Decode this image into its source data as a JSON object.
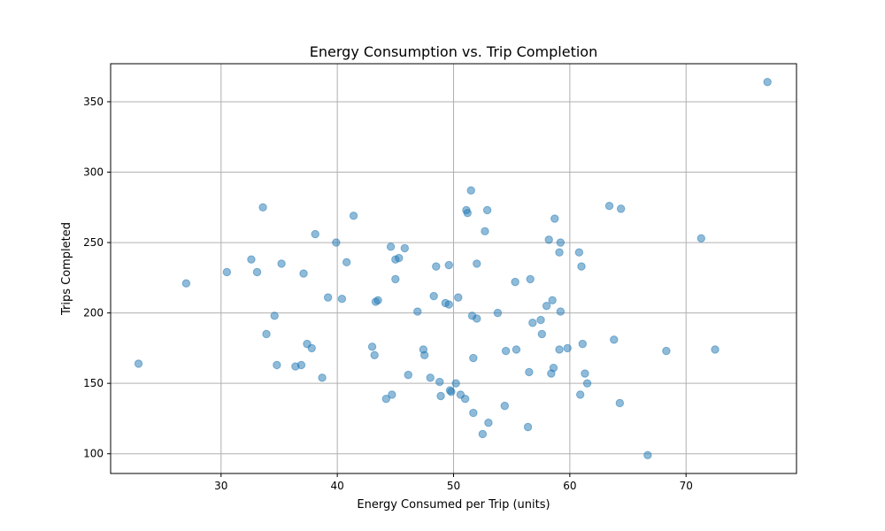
{
  "chart_data": {
    "type": "scatter",
    "title": "Energy Consumption vs. Trip Completion",
    "xlabel": "Energy Consumed per Trip (units)",
    "ylabel": "Trips Completed",
    "xlim": [
      20.5,
      79.5
    ],
    "ylim": [
      86,
      377
    ],
    "xticks": [
      30,
      40,
      50,
      60,
      70
    ],
    "yticks": [
      100,
      150,
      200,
      250,
      300,
      350
    ],
    "grid": true,
    "point_color": "#1f77b4",
    "point_opacity": 0.5,
    "points": [
      [
        22.9,
        164
      ],
      [
        27.0,
        221
      ],
      [
        30.5,
        229
      ],
      [
        32.6,
        238
      ],
      [
        33.1,
        229
      ],
      [
        33.6,
        275
      ],
      [
        33.9,
        185
      ],
      [
        34.6,
        198
      ],
      [
        34.8,
        163
      ],
      [
        35.2,
        235
      ],
      [
        36.4,
        162
      ],
      [
        36.9,
        163
      ],
      [
        37.1,
        228
      ],
      [
        37.4,
        178
      ],
      [
        37.8,
        175
      ],
      [
        38.1,
        256
      ],
      [
        38.7,
        154
      ],
      [
        39.2,
        211
      ],
      [
        39.9,
        250
      ],
      [
        40.4,
        210
      ],
      [
        40.8,
        236
      ],
      [
        41.4,
        269
      ],
      [
        43.0,
        176
      ],
      [
        43.2,
        170
      ],
      [
        43.3,
        208
      ],
      [
        43.5,
        209
      ],
      [
        44.2,
        139
      ],
      [
        44.6,
        247
      ],
      [
        44.7,
        142
      ],
      [
        45.0,
        224
      ],
      [
        45.0,
        238
      ],
      [
        45.3,
        239
      ],
      [
        45.8,
        246
      ],
      [
        46.1,
        156
      ],
      [
        46.9,
        201
      ],
      [
        47.4,
        174
      ],
      [
        47.5,
        170
      ],
      [
        48.0,
        154
      ],
      [
        48.3,
        212
      ],
      [
        48.5,
        233
      ],
      [
        48.8,
        151
      ],
      [
        48.9,
        141
      ],
      [
        49.3,
        207
      ],
      [
        49.6,
        234
      ],
      [
        49.6,
        206
      ],
      [
        49.7,
        145
      ],
      [
        49.8,
        144
      ],
      [
        50.2,
        150
      ],
      [
        50.4,
        211
      ],
      [
        50.6,
        142
      ],
      [
        51.0,
        139
      ],
      [
        51.1,
        273
      ],
      [
        51.2,
        271
      ],
      [
        51.5,
        287
      ],
      [
        51.6,
        198
      ],
      [
        51.7,
        129
      ],
      [
        51.7,
        168
      ],
      [
        52.0,
        235
      ],
      [
        52.0,
        196
      ],
      [
        52.5,
        114
      ],
      [
        52.7,
        258
      ],
      [
        52.9,
        273
      ],
      [
        53.0,
        122
      ],
      [
        53.8,
        200
      ],
      [
        54.4,
        134
      ],
      [
        54.5,
        173
      ],
      [
        55.3,
        222
      ],
      [
        55.4,
        174
      ],
      [
        56.4,
        119
      ],
      [
        56.5,
        158
      ],
      [
        56.6,
        224
      ],
      [
        56.8,
        193
      ],
      [
        57.5,
        195
      ],
      [
        57.6,
        185
      ],
      [
        58.0,
        205
      ],
      [
        58.2,
        252
      ],
      [
        58.4,
        157
      ],
      [
        58.5,
        209
      ],
      [
        58.6,
        161
      ],
      [
        58.7,
        267
      ],
      [
        59.1,
        174
      ],
      [
        59.1,
        243
      ],
      [
        59.2,
        250
      ],
      [
        59.2,
        201
      ],
      [
        59.8,
        175
      ],
      [
        60.8,
        243
      ],
      [
        60.9,
        142
      ],
      [
        61.0,
        233
      ],
      [
        61.1,
        178
      ],
      [
        61.3,
        157
      ],
      [
        61.5,
        150
      ],
      [
        63.4,
        276
      ],
      [
        63.8,
        181
      ],
      [
        64.3,
        136
      ],
      [
        64.4,
        274
      ],
      [
        66.7,
        99
      ],
      [
        68.3,
        173
      ],
      [
        71.3,
        253
      ],
      [
        72.5,
        174
      ],
      [
        77.0,
        364
      ]
    ]
  }
}
